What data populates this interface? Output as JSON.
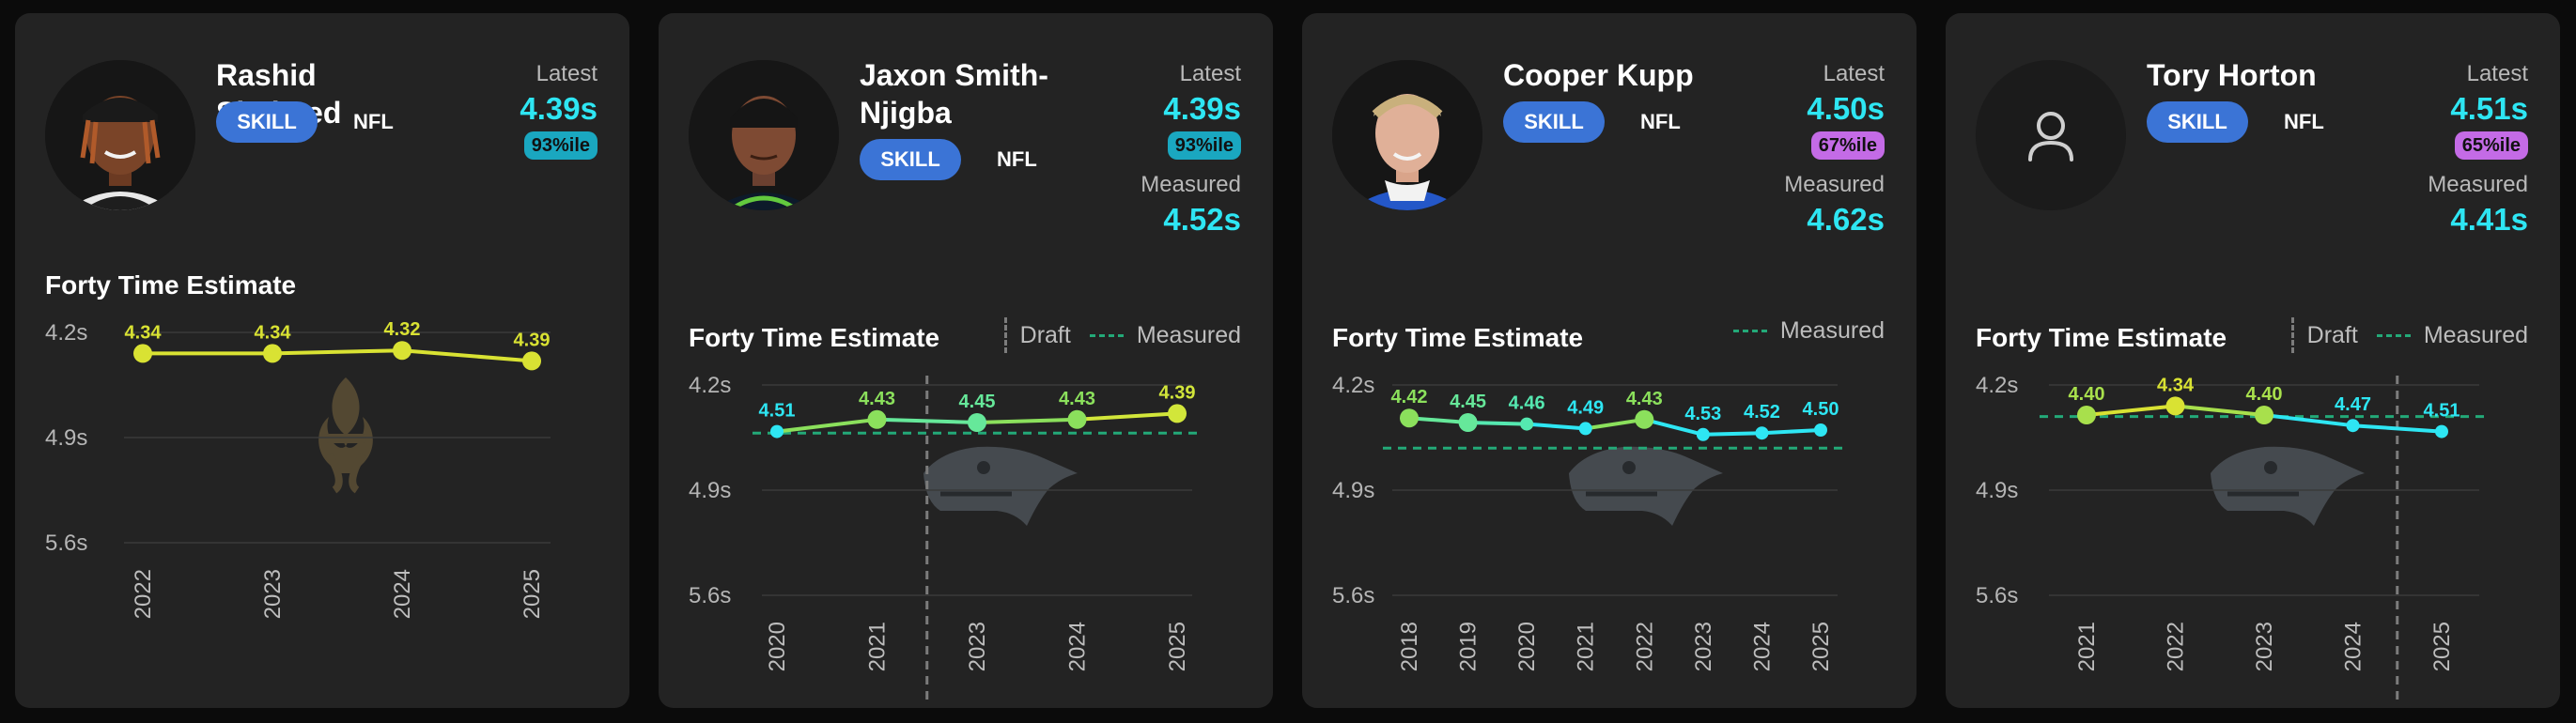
{
  "cards": [
    {
      "name": "Rashid Shaheed",
      "position_tag": "SKILL",
      "league": "NFL",
      "latest_label": "Latest",
      "latest_value": "4.39s",
      "percentile": "93%ile",
      "percentile_color": "#1aa7c0",
      "measured_label": "",
      "measured_value": "",
      "avatar_icon": "player-headshot-image",
      "team_logo_icon": "fleur-de-lis-icon",
      "chart_title": "Forty Time Estimate"
    },
    {
      "name": "Jaxon Smith-Njigba",
      "position_tag": "SKILL",
      "league": "NFL",
      "latest_label": "Latest",
      "latest_value": "4.39s",
      "percentile": "93%ile",
      "percentile_color": "#1aa7c0",
      "measured_label": "Measured",
      "measured_value": "4.52s",
      "avatar_icon": "player-headshot-image",
      "team_logo_icon": "seahawk-icon",
      "chart_title": "Forty Time Estimate",
      "legend_draft": "Draft",
      "legend_measured": "Measured"
    },
    {
      "name": "Cooper Kupp",
      "position_tag": "SKILL",
      "league": "NFL",
      "latest_label": "Latest",
      "latest_value": "4.50s",
      "percentile": "67%ile",
      "percentile_color": "#c46be6",
      "measured_label": "Measured",
      "measured_value": "4.62s",
      "avatar_icon": "player-headshot-image",
      "team_logo_icon": "seahawk-icon",
      "chart_title": "Forty Time Estimate",
      "legend_measured": "Measured"
    },
    {
      "name": "Tory Horton",
      "position_tag": "SKILL",
      "league": "NFL",
      "latest_label": "Latest",
      "latest_value": "4.51s",
      "percentile": "65%ile",
      "percentile_color": "#c46be6",
      "measured_label": "Measured",
      "measured_value": "4.41s",
      "avatar_icon": "user-placeholder-icon",
      "team_logo_icon": "seahawk-icon",
      "chart_title": "Forty Time Estimate",
      "legend_draft": "Draft",
      "legend_measured": "Measured"
    }
  ],
  "chart_data": [
    {
      "type": "line",
      "title": "Forty Time Estimate",
      "y_ticks": [
        "4.2s",
        "4.9s",
        "5.6s"
      ],
      "ylim": [
        4.2,
        5.6
      ],
      "y_inverted": true,
      "categories": [
        "2022",
        "2023",
        "2024",
        "2025"
      ],
      "values": [
        4.34,
        4.34,
        4.32,
        4.39
      ],
      "labels": [
        "4.34",
        "4.34",
        "4.32",
        "4.39"
      ],
      "colors": [
        "#d9e233",
        "#d9e233",
        "#d9e233",
        "#d9e233"
      ],
      "measured": null,
      "draft_between": null
    },
    {
      "type": "line",
      "title": "Forty Time Estimate",
      "y_ticks": [
        "4.2s",
        "4.9s",
        "5.6s"
      ],
      "ylim": [
        4.2,
        5.6
      ],
      "y_inverted": true,
      "categories": [
        "2020",
        "2021",
        "2023",
        "2024",
        "2025"
      ],
      "values": [
        4.51,
        4.43,
        4.45,
        4.43,
        4.39
      ],
      "labels": [
        "4.51",
        "4.43",
        "4.45",
        "4.43",
        "4.39"
      ],
      "colors": [
        "#2ee6f3",
        "#8be05c",
        "#66e89a",
        "#8be05c",
        "#d2e63a"
      ],
      "measured": 4.52,
      "draft_between": [
        1,
        2
      ]
    },
    {
      "type": "line",
      "title": "Forty Time Estimate",
      "y_ticks": [
        "4.2s",
        "4.9s",
        "5.6s"
      ],
      "ylim": [
        4.2,
        5.6
      ],
      "y_inverted": true,
      "categories": [
        "2018",
        "2019",
        "2020",
        "2021",
        "2022",
        "2023",
        "2024",
        "2025"
      ],
      "values": [
        4.42,
        4.45,
        4.46,
        4.49,
        4.43,
        4.53,
        4.52,
        4.5
      ],
      "labels": [
        "4.42",
        "4.45",
        "4.46",
        "4.49",
        "4.43",
        "4.53",
        "4.52",
        "4.50"
      ],
      "colors": [
        "#8be05c",
        "#66e89a",
        "#55e8b0",
        "#2ee6f3",
        "#8be05c",
        "#2ee6f3",
        "#2ee6f3",
        "#2ee6f3"
      ],
      "measured": 4.62,
      "draft_between": null
    },
    {
      "type": "line",
      "title": "Forty Time Estimate",
      "y_ticks": [
        "4.2s",
        "4.9s",
        "5.6s"
      ],
      "ylim": [
        4.2,
        5.6
      ],
      "y_inverted": true,
      "categories": [
        "2021",
        "2022",
        "2023",
        "2024",
        "2025"
      ],
      "values": [
        4.4,
        4.34,
        4.4,
        4.47,
        4.51
      ],
      "labels": [
        "4.40",
        "4.34",
        "4.40",
        "4.47",
        "4.51"
      ],
      "colors": [
        "#a8e04c",
        "#d9e233",
        "#a8e04c",
        "#2ee6f3",
        "#2ee6f3"
      ],
      "measured": 4.41,
      "draft_between": [
        3,
        4
      ]
    }
  ]
}
